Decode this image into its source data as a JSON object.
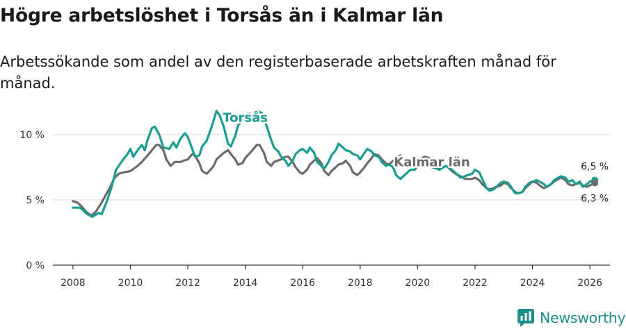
{
  "title": "Högre arbetslöshet i Torsås än i Kalmar län",
  "subtitle": "Arbetssökande som andel av den registerbaserade arbetskraften månad för månad.",
  "brand": {
    "name": "Newsworthy",
    "icon": "newsworthy-logo-icon",
    "color": "#1e8e8a"
  },
  "chart_data": {
    "type": "line",
    "title": "Högre arbetslöshet i Torsås än i Kalmar län",
    "xlabel": "",
    "ylabel": "",
    "xlim": [
      2007.3,
      2026.7
    ],
    "ylim": [
      0,
      11
    ],
    "yticks": [
      0,
      5,
      10
    ],
    "ytick_labels": [
      "0 %",
      "5 %",
      "10 %"
    ],
    "xticks": [
      2008,
      2010,
      2012,
      2014,
      2016,
      2018,
      2020,
      2022,
      2024,
      2026
    ],
    "xtick_labels": [
      "2008",
      "2010",
      "2012",
      "2014",
      "2016",
      "2018",
      "2020",
      "2022",
      "2024",
      "2026"
    ],
    "grid": "horizontal",
    "series": [
      {
        "name": "Torsås",
        "color": "#1a9c92",
        "label_x": 2014.0,
        "end_label": "6,5 %",
        "points": [
          [
            2008.0,
            4.4
          ],
          [
            2008.25,
            4.4
          ],
          [
            2008.5,
            3.9
          ],
          [
            2008.67,
            3.7
          ],
          [
            2008.9,
            4.0
          ],
          [
            2009.0,
            3.9
          ],
          [
            2009.2,
            5.0
          ],
          [
            2009.35,
            6.0
          ],
          [
            2009.5,
            7.3
          ],
          [
            2009.75,
            8.1
          ],
          [
            2009.9,
            8.5
          ],
          [
            2010.0,
            8.9
          ],
          [
            2010.1,
            8.3
          ],
          [
            2010.25,
            8.8
          ],
          [
            2010.4,
            9.2
          ],
          [
            2010.5,
            8.8
          ],
          [
            2010.6,
            9.6
          ],
          [
            2010.75,
            10.5
          ],
          [
            2010.85,
            10.6
          ],
          [
            2011.0,
            10.0
          ],
          [
            2011.15,
            9.0
          ],
          [
            2011.35,
            8.9
          ],
          [
            2011.5,
            9.4
          ],
          [
            2011.6,
            9.0
          ],
          [
            2011.75,
            9.7
          ],
          [
            2011.9,
            10.1
          ],
          [
            2012.0,
            9.8
          ],
          [
            2012.15,
            8.9
          ],
          [
            2012.25,
            8.3
          ],
          [
            2012.4,
            8.4
          ],
          [
            2012.5,
            9.1
          ],
          [
            2012.65,
            9.5
          ],
          [
            2012.8,
            10.4
          ],
          [
            2013.0,
            11.8
          ],
          [
            2013.1,
            11.5
          ],
          [
            2013.25,
            10.6
          ],
          [
            2013.4,
            9.3
          ],
          [
            2013.5,
            9.1
          ],
          [
            2013.65,
            9.9
          ],
          [
            2013.75,
            10.7
          ],
          [
            2014.0,
            11.3
          ],
          [
            2014.15,
            11.6
          ],
          [
            2014.25,
            11.3
          ],
          [
            2014.35,
            11.6
          ],
          [
            2014.45,
            11.8
          ],
          [
            2014.6,
            11.6
          ],
          [
            2014.75,
            10.6
          ],
          [
            2014.9,
            9.6
          ],
          [
            2015.0,
            9.0
          ],
          [
            2015.15,
            8.7
          ],
          [
            2015.25,
            8.3
          ],
          [
            2015.4,
            8.0
          ],
          [
            2015.5,
            7.6
          ],
          [
            2015.65,
            8.0
          ],
          [
            2015.75,
            8.5
          ],
          [
            2015.9,
            8.8
          ],
          [
            2016.0,
            8.9
          ],
          [
            2016.15,
            8.6
          ],
          [
            2016.25,
            9.0
          ],
          [
            2016.4,
            8.6
          ],
          [
            2016.5,
            7.9
          ],
          [
            2016.65,
            7.6
          ],
          [
            2016.75,
            7.4
          ],
          [
            2016.9,
            7.9
          ],
          [
            2017.0,
            8.4
          ],
          [
            2017.15,
            8.8
          ],
          [
            2017.25,
            9.3
          ],
          [
            2017.4,
            9.0
          ],
          [
            2017.5,
            8.8
          ],
          [
            2017.65,
            8.7
          ],
          [
            2017.75,
            8.5
          ],
          [
            2017.9,
            8.4
          ],
          [
            2018.0,
            8.1
          ],
          [
            2018.15,
            8.6
          ],
          [
            2018.25,
            8.9
          ],
          [
            2018.4,
            8.7
          ],
          [
            2018.5,
            8.4
          ],
          [
            2018.65,
            8.3
          ],
          [
            2018.75,
            7.9
          ],
          [
            2018.9,
            7.6
          ],
          [
            2019.0,
            7.7
          ],
          [
            2019.15,
            7.5
          ],
          [
            2019.25,
            6.9
          ],
          [
            2019.4,
            6.6
          ],
          [
            2019.5,
            6.8
          ],
          [
            2019.65,
            7.1
          ],
          [
            2019.75,
            7.3
          ],
          [
            2019.9,
            7.3
          ],
          [
            2020.0,
            7.6
          ],
          [
            2020.15,
            7.8
          ],
          [
            2020.25,
            8.0
          ],
          [
            2020.4,
            7.9
          ],
          [
            2020.5,
            7.5
          ],
          [
            2020.65,
            7.4
          ],
          [
            2020.75,
            7.3
          ],
          [
            2020.9,
            7.5
          ],
          [
            2021.0,
            7.6
          ],
          [
            2021.15,
            7.4
          ],
          [
            2021.25,
            7.2
          ],
          [
            2021.4,
            6.9
          ],
          [
            2021.5,
            6.7
          ],
          [
            2021.65,
            6.8
          ],
          [
            2021.75,
            6.9
          ],
          [
            2021.9,
            7.0
          ],
          [
            2022.0,
            7.3
          ],
          [
            2022.15,
            7.1
          ],
          [
            2022.25,
            6.6
          ],
          [
            2022.4,
            5.9
          ],
          [
            2022.5,
            5.7
          ],
          [
            2022.65,
            5.8
          ],
          [
            2022.75,
            6.0
          ],
          [
            2022.9,
            6.3
          ],
          [
            2023.0,
            6.4
          ],
          [
            2023.15,
            6.3
          ],
          [
            2023.25,
            6.0
          ],
          [
            2023.4,
            5.5
          ],
          [
            2023.5,
            5.5
          ],
          [
            2023.65,
            5.6
          ],
          [
            2023.75,
            6.0
          ],
          [
            2023.9,
            6.3
          ],
          [
            2024.0,
            6.4
          ],
          [
            2024.15,
            6.5
          ],
          [
            2024.25,
            6.4
          ],
          [
            2024.4,
            6.2
          ],
          [
            2024.5,
            6.0
          ],
          [
            2024.65,
            6.2
          ],
          [
            2024.75,
            6.5
          ],
          [
            2024.9,
            6.7
          ],
          [
            2025.0,
            6.8
          ],
          [
            2025.15,
            6.7
          ],
          [
            2025.25,
            6.4
          ],
          [
            2025.4,
            6.5
          ],
          [
            2025.5,
            6.2
          ],
          [
            2025.65,
            6.4
          ],
          [
            2025.75,
            6.0
          ],
          [
            2025.9,
            6.2
          ],
          [
            2026.0,
            6.4
          ],
          [
            2026.17,
            6.5
          ]
        ]
      },
      {
        "name": "Kalmar län",
        "color": "#6b6b6b",
        "label_x": 2020.5,
        "end_label": "6,3 %",
        "points": [
          [
            2008.0,
            4.9
          ],
          [
            2008.15,
            4.8
          ],
          [
            2008.3,
            4.5
          ],
          [
            2008.5,
            4.0
          ],
          [
            2008.65,
            3.8
          ],
          [
            2008.8,
            4.1
          ],
          [
            2009.0,
            4.8
          ],
          [
            2009.25,
            5.8
          ],
          [
            2009.45,
            6.7
          ],
          [
            2009.6,
            7.0
          ],
          [
            2009.75,
            7.1
          ],
          [
            2010.0,
            7.2
          ],
          [
            2010.25,
            7.6
          ],
          [
            2010.4,
            7.9
          ],
          [
            2010.6,
            8.4
          ],
          [
            2010.75,
            8.8
          ],
          [
            2010.9,
            9.2
          ],
          [
            2011.0,
            9.2
          ],
          [
            2011.15,
            8.8
          ],
          [
            2011.25,
            8.1
          ],
          [
            2011.4,
            7.6
          ],
          [
            2011.55,
            7.9
          ],
          [
            2011.75,
            7.9
          ],
          [
            2011.85,
            8.0
          ],
          [
            2012.0,
            8.1
          ],
          [
            2012.15,
            8.5
          ],
          [
            2012.25,
            8.4
          ],
          [
            2012.4,
            7.8
          ],
          [
            2012.5,
            7.2
          ],
          [
            2012.65,
            7.0
          ],
          [
            2012.75,
            7.2
          ],
          [
            2012.9,
            7.6
          ],
          [
            2013.0,
            8.1
          ],
          [
            2013.25,
            8.6
          ],
          [
            2013.4,
            8.8
          ],
          [
            2013.5,
            8.5
          ],
          [
            2013.65,
            8.1
          ],
          [
            2013.75,
            7.7
          ],
          [
            2013.9,
            7.8
          ],
          [
            2014.0,
            8.2
          ],
          [
            2014.25,
            8.8
          ],
          [
            2014.4,
            9.2
          ],
          [
            2014.5,
            9.2
          ],
          [
            2014.65,
            8.6
          ],
          [
            2014.75,
            7.9
          ],
          [
            2014.9,
            7.6
          ],
          [
            2015.0,
            7.9
          ],
          [
            2015.25,
            8.1
          ],
          [
            2015.4,
            8.3
          ],
          [
            2015.5,
            8.3
          ],
          [
            2015.65,
            7.9
          ],
          [
            2015.75,
            7.5
          ],
          [
            2015.9,
            7.1
          ],
          [
            2016.0,
            7.0
          ],
          [
            2016.15,
            7.3
          ],
          [
            2016.25,
            7.7
          ],
          [
            2016.4,
            8.0
          ],
          [
            2016.5,
            8.2
          ],
          [
            2016.65,
            7.8
          ],
          [
            2016.75,
            7.2
          ],
          [
            2016.9,
            6.9
          ],
          [
            2017.0,
            7.2
          ],
          [
            2017.15,
            7.5
          ],
          [
            2017.25,
            7.7
          ],
          [
            2017.4,
            7.8
          ],
          [
            2017.5,
            8.0
          ],
          [
            2017.65,
            7.6
          ],
          [
            2017.75,
            7.1
          ],
          [
            2017.9,
            6.9
          ],
          [
            2018.0,
            7.1
          ],
          [
            2018.15,
            7.5
          ],
          [
            2018.25,
            7.8
          ],
          [
            2018.4,
            8.2
          ],
          [
            2018.5,
            8.5
          ],
          [
            2018.65,
            8.4
          ],
          [
            2018.75,
            8.1
          ],
          [
            2018.9,
            7.8
          ],
          [
            2019.0,
            7.7
          ],
          [
            2019.15,
            8.0
          ],
          [
            2019.25,
            8.2
          ],
          [
            2019.4,
            8.4
          ],
          [
            2019.5,
            8.2
          ],
          [
            2019.65,
            7.9
          ],
          [
            2019.75,
            7.6
          ],
          [
            2019.9,
            7.7
          ],
          [
            2020.0,
            7.9
          ],
          [
            2020.15,
            8.2
          ],
          [
            2020.25,
            8.3
          ],
          [
            2020.4,
            8.2
          ],
          [
            2020.5,
            7.9
          ],
          [
            2020.65,
            7.7
          ],
          [
            2020.75,
            7.5
          ],
          [
            2020.9,
            7.5
          ],
          [
            2021.0,
            7.6
          ],
          [
            2021.15,
            7.3
          ],
          [
            2021.25,
            7.1
          ],
          [
            2021.4,
            6.9
          ],
          [
            2021.5,
            6.8
          ],
          [
            2021.65,
            6.6
          ],
          [
            2021.75,
            6.6
          ],
          [
            2021.9,
            6.6
          ],
          [
            2022.0,
            6.7
          ],
          [
            2022.15,
            6.5
          ],
          [
            2022.25,
            6.2
          ],
          [
            2022.4,
            5.9
          ],
          [
            2022.5,
            5.8
          ],
          [
            2022.65,
            5.9
          ],
          [
            2022.75,
            6.0
          ],
          [
            2022.9,
            6.1
          ],
          [
            2023.0,
            6.3
          ],
          [
            2023.15,
            6.2
          ],
          [
            2023.25,
            5.9
          ],
          [
            2023.4,
            5.6
          ],
          [
            2023.5,
            5.5
          ],
          [
            2023.65,
            5.6
          ],
          [
            2023.75,
            5.9
          ],
          [
            2023.9,
            6.2
          ],
          [
            2024.0,
            6.4
          ],
          [
            2024.15,
            6.3
          ],
          [
            2024.25,
            6.1
          ],
          [
            2024.4,
            5.9
          ],
          [
            2024.5,
            6.0
          ],
          [
            2024.65,
            6.2
          ],
          [
            2024.75,
            6.4
          ],
          [
            2024.9,
            6.6
          ],
          [
            2025.0,
            6.7
          ],
          [
            2025.15,
            6.5
          ],
          [
            2025.25,
            6.2
          ],
          [
            2025.4,
            6.1
          ],
          [
            2025.5,
            6.2
          ],
          [
            2025.65,
            6.3
          ],
          [
            2025.75,
            6.1
          ],
          [
            2025.9,
            6.0
          ],
          [
            2026.0,
            6.1
          ],
          [
            2026.17,
            6.3
          ]
        ]
      }
    ]
  }
}
